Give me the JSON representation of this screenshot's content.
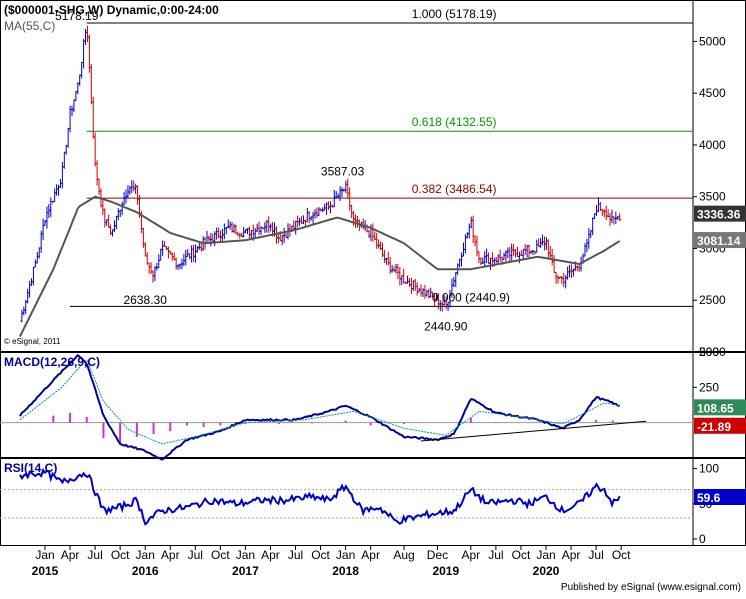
{
  "header": {
    "title": "($000001-SHG,W) Dynamic,0:00-24:00",
    "ma_label": "MA(55,C)"
  },
  "footer": {
    "watermark": "© eSignal, 2011",
    "published": "Published by eSignal (www.esignal.com)"
  },
  "colors": {
    "up": "#0000cc",
    "down": "#cc0000",
    "ma": "#555555",
    "fib_red": "#990000",
    "fib_green": "#009900",
    "macd": "#000099",
    "signal": "#009999",
    "hist": "#cc33cc",
    "rsi": "#0000cc"
  },
  "chart_data": [
    {
      "type": "candlestick",
      "title": "($000001-SHG,W) Dynamic,0:00-24:00",
      "ylim": [
        2000,
        5400
      ],
      "yticks": [
        2000,
        2500,
        3000,
        3500,
        4000,
        4500,
        5000
      ],
      "x_tick_labels": [
        "Jan",
        "Apr",
        "Jul",
        "Oct",
        "Jan",
        "Apr",
        "Jul",
        "Oct",
        "Jan",
        "Apr",
        "Jul",
        "Oct",
        "Jan",
        "Apr",
        "Aug",
        "Dec",
        "Apr",
        "Jul",
        "Oct",
        "Jan",
        "Apr",
        "Jul",
        "Oct"
      ],
      "x_tick_months": [
        "2015-01",
        "2015-04",
        "2015-07",
        "2015-10",
        "2016-01",
        "2016-04",
        "2016-07",
        "2016-10",
        "2017-01",
        "2017-04",
        "2017-07",
        "2017-10",
        "2018-01",
        "2018-04",
        "2018-08",
        "2018-12",
        "2019-04",
        "2019-07",
        "2019-10",
        "2020-01",
        "2020-04",
        "2020-07",
        "2020-10"
      ],
      "x_year_labels": [
        {
          "label": "2015",
          "month": "2015-01"
        },
        {
          "label": "2016",
          "month": "2016-01"
        },
        {
          "label": "2017",
          "month": "2017-01"
        },
        {
          "label": "2018",
          "month": "2018-01"
        },
        {
          "label": "2019",
          "month": "2019-01"
        },
        {
          "label": "2020",
          "month": "2020-01"
        }
      ],
      "price_path": [
        [
          "2014-10",
          2300
        ],
        [
          "2014-12",
          2900
        ],
        [
          "2015-01",
          3300
        ],
        [
          "2015-03",
          3700
        ],
        [
          "2015-04",
          4300
        ],
        [
          "2015-05",
          4600
        ],
        [
          "2015-06",
          5178.19
        ],
        [
          "2015-07",
          3800
        ],
        [
          "2015-08",
          3300
        ],
        [
          "2015-09",
          3150
        ],
        [
          "2015-10",
          3400
        ],
        [
          "2015-11",
          3600
        ],
        [
          "2015-12",
          3550
        ],
        [
          "2016-01",
          2900
        ],
        [
          "2016-02",
          2750
        ],
        [
          "2016-03",
          3000
        ],
        [
          "2016-05",
          2850
        ],
        [
          "2016-08",
          3050
        ],
        [
          "2016-11",
          3200
        ],
        [
          "2017-01",
          3150
        ],
        [
          "2017-04",
          3250
        ],
        [
          "2017-05",
          3100
        ],
        [
          "2017-07",
          3220
        ],
        [
          "2017-09",
          3350
        ],
        [
          "2017-11",
          3400
        ],
        [
          "2018-01",
          3587.03
        ],
        [
          "2018-02",
          3250
        ],
        [
          "2018-04",
          3150
        ],
        [
          "2018-06",
          2850
        ],
        [
          "2018-08",
          2700
        ],
        [
          "2018-10",
          2600
        ],
        [
          "2018-12",
          2500
        ],
        [
          "2019-01",
          2440.9
        ],
        [
          "2019-03",
          3000
        ],
        [
          "2019-04",
          3250
        ],
        [
          "2019-05",
          2900
        ],
        [
          "2019-07",
          2900
        ],
        [
          "2019-09",
          2950
        ],
        [
          "2019-12",
          3000
        ],
        [
          "2020-01",
          3080
        ],
        [
          "2020-02",
          2750
        ],
        [
          "2020-03",
          2700
        ],
        [
          "2020-05",
          2850
        ],
        [
          "2020-06",
          3050
        ],
        [
          "2020-07",
          3400
        ],
        [
          "2020-08",
          3380
        ],
        [
          "2020-09",
          3250
        ],
        [
          "2020-10",
          3336.36
        ]
      ],
      "ma_path": [
        [
          "2014-10",
          2150
        ],
        [
          "2015-02",
          2800
        ],
        [
          "2015-05",
          3400
        ],
        [
          "2015-07",
          3500
        ],
        [
          "2015-09",
          3450
        ],
        [
          "2015-12",
          3350
        ],
        [
          "2016-04",
          3150
        ],
        [
          "2016-08",
          3050
        ],
        [
          "2017-01",
          3080
        ],
        [
          "2017-07",
          3180
        ],
        [
          "2017-12",
          3300
        ],
        [
          "2018-04",
          3200
        ],
        [
          "2018-08",
          3050
        ],
        [
          "2018-12",
          2800
        ],
        [
          "2019-04",
          2800
        ],
        [
          "2019-12",
          2920
        ],
        [
          "2020-05",
          2850
        ],
        [
          "2020-08",
          2980
        ],
        [
          "2020-10",
          3081.14
        ]
      ],
      "fib_levels": [
        {
          "label": "1.000 (5178.19)",
          "value": 5178.19,
          "color": "black"
        },
        {
          "label": "0.618 (4132.55)",
          "value": 4132.55,
          "color": "green"
        },
        {
          "label": "0.382 (3486.54)",
          "value": 3486.54,
          "color": "red"
        },
        {
          "label": "0.000 (2440.9)",
          "value": 2440.9,
          "color": "black"
        }
      ],
      "annotations": [
        {
          "text": "5178.19",
          "month": "2015-06",
          "value": 5178.19
        },
        {
          "text": "3587.03",
          "month": "2018-01",
          "value": 3587.03
        },
        {
          "text": "2638.30",
          "month": "2016-01",
          "value": 2638.3
        },
        {
          "text": "2440.90",
          "month": "2019-01",
          "value": 2440.9
        }
      ],
      "last_values": [
        {
          "text": "3336.36",
          "value": 3336.36,
          "style": "dark"
        },
        {
          "text": "3081.14",
          "value": 3081.14,
          "style": "gray"
        }
      ]
    },
    {
      "type": "line",
      "title": "MACD(12,26,9,C)",
      "ylim": [
        -250,
        500
      ],
      "yticks": [
        250,
        500
      ],
      "series": [
        {
          "name": "MACD",
          "path": [
            [
              "2014-10",
              50
            ],
            [
              "2015-02",
              300
            ],
            [
              "2015-05",
              480
            ],
            [
              "2015-06",
              420
            ],
            [
              "2015-08",
              50
            ],
            [
              "2015-10",
              -150
            ],
            [
              "2016-01",
              -200
            ],
            [
              "2016-03",
              -260
            ],
            [
              "2016-06",
              -120
            ],
            [
              "2016-10",
              -60
            ],
            [
              "2017-01",
              20
            ],
            [
              "2017-07",
              20
            ],
            [
              "2017-11",
              80
            ],
            [
              "2018-01",
              120
            ],
            [
              "2018-04",
              40
            ],
            [
              "2018-08",
              -100
            ],
            [
              "2018-12",
              -120
            ],
            [
              "2019-02",
              -80
            ],
            [
              "2019-04",
              170
            ],
            [
              "2019-07",
              70
            ],
            [
              "2019-12",
              20
            ],
            [
              "2020-03",
              -40
            ],
            [
              "2020-05",
              20
            ],
            [
              "2020-07",
              180
            ],
            [
              "2020-09",
              140
            ],
            [
              "2020-10",
              108.65
            ]
          ]
        },
        {
          "name": "Signal",
          "path": [
            [
              "2014-10",
              20
            ],
            [
              "2015-03",
              250
            ],
            [
              "2015-06",
              450
            ],
            [
              "2015-08",
              150
            ],
            [
              "2015-11",
              -50
            ],
            [
              "2016-03",
              -150
            ],
            [
              "2016-07",
              -100
            ],
            [
              "2017-01",
              0
            ],
            [
              "2017-08",
              20
            ],
            [
              "2018-02",
              80
            ],
            [
              "2018-08",
              -40
            ],
            [
              "2019-01",
              -90
            ],
            [
              "2019-05",
              80
            ],
            [
              "2019-10",
              40
            ],
            [
              "2020-03",
              -10
            ],
            [
              "2020-08",
              140
            ],
            [
              "2020-10",
              120
            ]
          ]
        }
      ],
      "histogram": [
        [
          "2015-02",
          50
        ],
        [
          "2015-04",
          70
        ],
        [
          "2015-06",
          40
        ],
        [
          "2015-08",
          -110
        ],
        [
          "2015-10",
          -150
        ],
        [
          "2015-12",
          -100
        ],
        [
          "2016-02",
          -80
        ],
        [
          "2016-04",
          -60
        ],
        [
          "2016-06",
          -20
        ],
        [
          "2016-08",
          -30
        ],
        [
          "2016-10",
          -20
        ],
        [
          "2017-01",
          -10
        ],
        [
          "2017-05",
          -10
        ],
        [
          "2017-09",
          -5
        ],
        [
          "2018-01",
          15
        ],
        [
          "2018-04",
          -20
        ],
        [
          "2018-08",
          -10
        ],
        [
          "2019-04",
          35
        ],
        [
          "2019-07",
          5
        ],
        [
          "2020-07",
          20
        ],
        [
          "2020-09",
          15
        ]
      ],
      "trendline": [
        [
          "2018-10",
          -130
        ],
        [
          "2021-01",
          10
        ]
      ],
      "last_values": [
        {
          "text": "108.65",
          "value": 108.65,
          "style": "green"
        },
        {
          "text": "-21.89",
          "value": -21.89,
          "style": "red"
        }
      ]
    },
    {
      "type": "line",
      "title": "RSI(14,C)",
      "ylim": [
        -10,
        115
      ],
      "yticks": [
        0,
        50,
        100
      ],
      "reference_lines": [
        70,
        30
      ],
      "series": [
        {
          "name": "RSI",
          "path": [
            [
              "2014-10",
              90
            ],
            [
              "2015-01",
              95
            ],
            [
              "2015-03",
              80
            ],
            [
              "2015-06",
              95
            ],
            [
              "2015-08",
              40
            ],
            [
              "2015-10",
              45
            ],
            [
              "2015-12",
              55
            ],
            [
              "2016-01",
              25
            ],
            [
              "2016-03",
              40
            ],
            [
              "2016-06",
              45
            ],
            [
              "2016-09",
              55
            ],
            [
              "2016-12",
              50
            ],
            [
              "2017-03",
              55
            ],
            [
              "2017-06",
              55
            ],
            [
              "2017-09",
              60
            ],
            [
              "2017-11",
              55
            ],
            [
              "2018-01",
              75
            ],
            [
              "2018-03",
              40
            ],
            [
              "2018-05",
              45
            ],
            [
              "2018-07",
              25
            ],
            [
              "2018-09",
              30
            ],
            [
              "2018-11",
              35
            ],
            [
              "2019-02",
              40
            ],
            [
              "2019-04",
              70
            ],
            [
              "2019-06",
              50
            ],
            [
              "2019-09",
              55
            ],
            [
              "2019-11",
              50
            ],
            [
              "2020-01",
              60
            ],
            [
              "2020-03",
              40
            ],
            [
              "2020-05",
              50
            ],
            [
              "2020-07",
              75
            ],
            [
              "2020-08",
              70
            ],
            [
              "2020-09",
              50
            ],
            [
              "2020-10",
              59.6
            ]
          ]
        }
      ],
      "last_values": [
        {
          "text": "59.6",
          "value": 59.6,
          "style": "blue"
        }
      ]
    }
  ]
}
